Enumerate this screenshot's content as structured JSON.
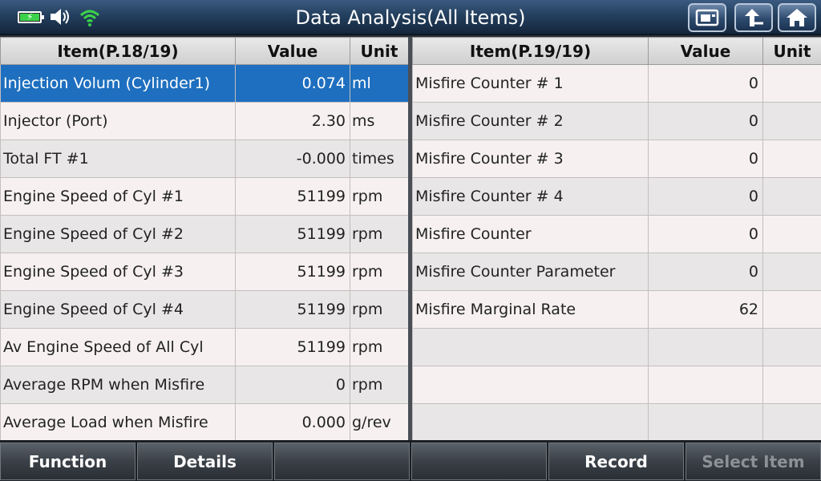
{
  "header": {
    "title": "Data Analysis(All Items)",
    "icons": [
      "battery-charging-icon",
      "speaker-icon",
      "wifi-icon",
      "screenshot-icon",
      "back-arrow-icon",
      "home-icon"
    ],
    "battery_level": 1.0,
    "accent_color": "#1e6fbf"
  },
  "left_table": {
    "col_item": "Item(P.18/19)",
    "col_value": "Value",
    "col_unit": "Unit",
    "rows": [
      {
        "item": "Injection Volum (Cylinder1)",
        "value": "0.074",
        "unit": "ml"
      },
      {
        "item": "Injector (Port)",
        "value": "2.30",
        "unit": "ms"
      },
      {
        "item": "Total FT #1",
        "value": "-0.000",
        "unit": "times"
      },
      {
        "item": "Engine Speed of Cyl #1",
        "value": "51199",
        "unit": "rpm"
      },
      {
        "item": "Engine Speed of Cyl #2",
        "value": "51199",
        "unit": "rpm"
      },
      {
        "item": "Engine Speed of Cyl #3",
        "value": "51199",
        "unit": "rpm"
      },
      {
        "item": "Engine Speed of Cyl #4",
        "value": "51199",
        "unit": "rpm"
      },
      {
        "item": "Av Engine Speed of All Cyl",
        "value": "51199",
        "unit": "rpm"
      },
      {
        "item": "Average RPM when Misfire",
        "value": "0",
        "unit": "rpm"
      },
      {
        "item": "Average Load when Misfire",
        "value": "0.000",
        "unit": "g/rev"
      }
    ]
  },
  "right_table": {
    "col_item": "Item(P.19/19)",
    "col_value": "Value",
    "col_unit": "Unit",
    "rows": [
      {
        "item": "Misfire Counter # 1",
        "value": "0",
        "unit": ""
      },
      {
        "item": "Misfire Counter # 2",
        "value": "0",
        "unit": ""
      },
      {
        "item": "Misfire Counter # 3",
        "value": "0",
        "unit": ""
      },
      {
        "item": "Misfire Counter # 4",
        "value": "0",
        "unit": ""
      },
      {
        "item": "Misfire Counter",
        "value": "0",
        "unit": ""
      },
      {
        "item": "Misfire Counter Parameter",
        "value": "0",
        "unit": ""
      },
      {
        "item": "Misfire Marginal Rate",
        "value": "62",
        "unit": ""
      },
      {
        "item": "",
        "value": "",
        "unit": ""
      },
      {
        "item": "",
        "value": "",
        "unit": ""
      },
      {
        "item": "",
        "value": "",
        "unit": ""
      }
    ]
  },
  "footer": {
    "function_label": "Function",
    "details_label": "Details",
    "blank1_label": "",
    "blank2_label": "",
    "record_label": "Record",
    "select_item_label": "Select Item"
  }
}
